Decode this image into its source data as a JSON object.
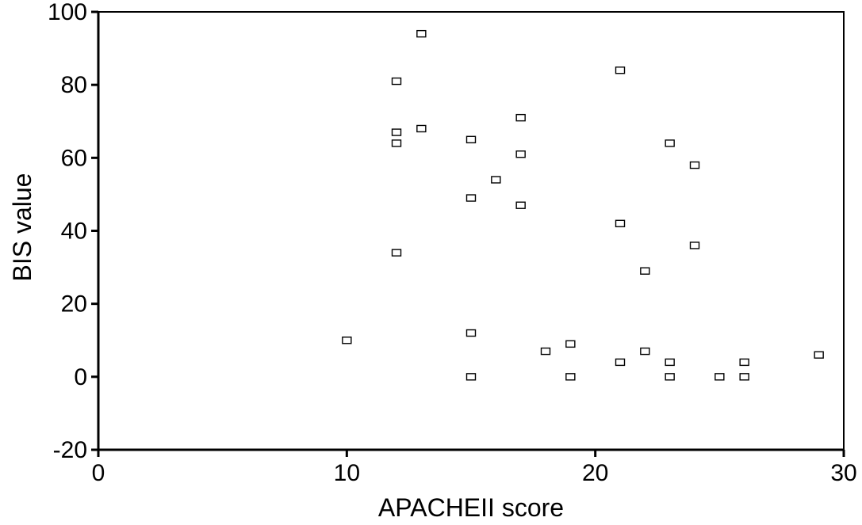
{
  "chart_data": {
    "type": "scatter",
    "title": "",
    "xlabel": "APACHEII score",
    "ylabel": "BIS value",
    "xlim": [
      0,
      30
    ],
    "ylim": [
      -20,
      100
    ],
    "x_ticks": [
      0,
      10,
      20,
      30
    ],
    "y_ticks": [
      -20,
      0,
      20,
      40,
      60,
      80,
      100
    ],
    "x_tick_labels": [
      "0",
      "10",
      "20",
      "30"
    ],
    "y_tick_labels": [
      "-20",
      "0",
      "20",
      "40",
      "60",
      "80",
      "100"
    ],
    "grid": false,
    "marker": "hollow-square",
    "points": [
      {
        "x": 10,
        "y": 10
      },
      {
        "x": 12,
        "y": 81
      },
      {
        "x": 12,
        "y": 67
      },
      {
        "x": 12,
        "y": 64
      },
      {
        "x": 12,
        "y": 34
      },
      {
        "x": 13,
        "y": 94
      },
      {
        "x": 13,
        "y": 68
      },
      {
        "x": 15,
        "y": 65
      },
      {
        "x": 15,
        "y": 49
      },
      {
        "x": 15,
        "y": 12
      },
      {
        "x": 15,
        "y": 0
      },
      {
        "x": 16,
        "y": 54
      },
      {
        "x": 17,
        "y": 71
      },
      {
        "x": 17,
        "y": 61
      },
      {
        "x": 17,
        "y": 47
      },
      {
        "x": 18,
        "y": 7
      },
      {
        "x": 19,
        "y": 9
      },
      {
        "x": 19,
        "y": 0
      },
      {
        "x": 21,
        "y": 84
      },
      {
        "x": 21,
        "y": 42
      },
      {
        "x": 21,
        "y": 4
      },
      {
        "x": 22,
        "y": 29
      },
      {
        "x": 22,
        "y": 7
      },
      {
        "x": 23,
        "y": 64
      },
      {
        "x": 23,
        "y": 4
      },
      {
        "x": 23,
        "y": 0
      },
      {
        "x": 24,
        "y": 58
      },
      {
        "x": 24,
        "y": 36
      },
      {
        "x": 25,
        "y": 0
      },
      {
        "x": 26,
        "y": 4
      },
      {
        "x": 26,
        "y": 0
      },
      {
        "x": 29,
        "y": 6
      }
    ]
  }
}
